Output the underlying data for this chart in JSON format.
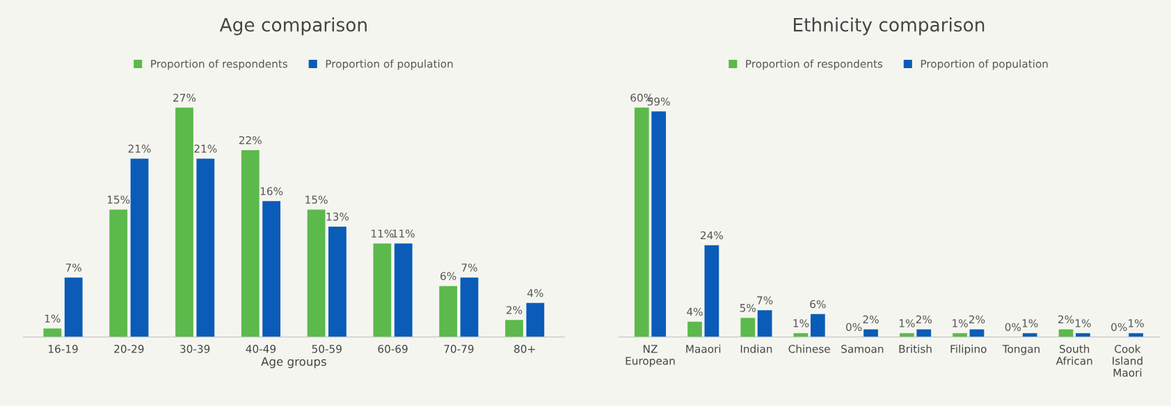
{
  "chart_data": [
    {
      "type": "bar",
      "title": "Age comparison",
      "xlabel": "Age groups",
      "categories": [
        "16-19",
        "20-29",
        "30-39",
        "40-49",
        "50-59",
        "60-69",
        "70-79",
        "80+"
      ],
      "legend": "top",
      "tick_labels": "x",
      "series": [
        {
          "name": "Proportion of respondents",
          "color": "#5cb94c",
          "values": [
            1,
            15,
            27,
            22,
            15,
            11,
            6,
            2
          ],
          "value_labels": [
            "1%",
            "15%",
            "27%",
            "22%",
            "15%",
            "11%",
            "6%",
            "2%"
          ]
        },
        {
          "name": "Proportion of population",
          "color": "#0a5cb8",
          "values": [
            7,
            21,
            21,
            16,
            13,
            11,
            7,
            4
          ],
          "value_labels": [
            "7%",
            "21%",
            "21%",
            "16%",
            "13%",
            "11%",
            "7%",
            "4%"
          ]
        }
      ]
    },
    {
      "type": "bar",
      "title": "Ethnicity comparison",
      "categories": [
        "NZ\nEuropean",
        "Maaori",
        "Indian",
        "Chinese",
        "Samoan",
        "British",
        "Filipino",
        "Tongan",
        "South\nAfrican",
        "Cook\nIsland\nMaori"
      ],
      "legend": "top",
      "tick_labels": "x",
      "series": [
        {
          "name": "Proportion of respondents",
          "color": "#5cb94c",
          "values": [
            60,
            4,
            5,
            1,
            0,
            1,
            1,
            0,
            2,
            0
          ],
          "value_labels": [
            "60%",
            "4%",
            "5%",
            "1%",
            "0%",
            "1%",
            "1%",
            "0%",
            "2%",
            "0%"
          ]
        },
        {
          "name": "Proportion of population",
          "color": "#0a5cb8",
          "values": [
            59,
            24,
            7,
            6,
            2,
            2,
            2,
            1,
            1,
            1
          ],
          "value_labels": [
            "59%",
            "24%",
            "7%",
            "6%",
            "2%",
            "2%",
            "2%",
            "1%",
            "1%",
            "1%"
          ]
        }
      ]
    }
  ]
}
